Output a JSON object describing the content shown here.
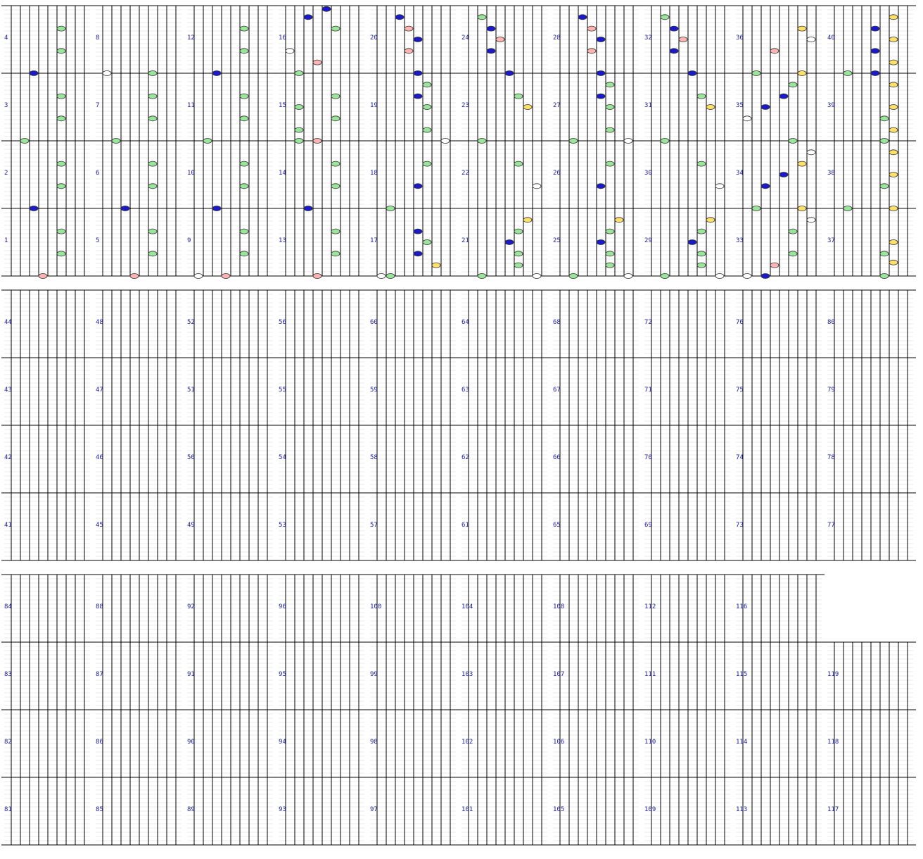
{
  "colors": {
    "white_note": "#ffffff",
    "green_note": "#99e699",
    "red_note": "#ffb3b3",
    "blue_note": "#1a1acc",
    "yellow_note": "#ffe066",
    "cyan_hold": "#a8d8ea",
    "pink_hold": "#ffb6c1",
    "green_hold": "#99e699",
    "white_hold": "#ffffff",
    "measure_number": "#2020a0"
  },
  "chart": {
    "measures": [
      "1",
      "2",
      "3",
      "4",
      "5",
      "6",
      "7",
      "8",
      "9",
      "10",
      "11",
      "12",
      "13",
      "14",
      "15",
      "16",
      "17",
      "18",
      "19",
      "20",
      "21",
      "22",
      "23",
      "24",
      "25",
      "26",
      "27",
      "28",
      "29",
      "30",
      "31",
      "32",
      "33",
      "34",
      "35",
      "36",
      "37",
      "38",
      "39",
      "40",
      "41",
      "42",
      "43",
      "44",
      "45",
      "46",
      "47",
      "48",
      "49",
      "50",
      "51",
      "52",
      "53",
      "54",
      "55",
      "56",
      "57",
      "58",
      "59",
      "60",
      "61",
      "62",
      "63",
      "64",
      "65",
      "66",
      "67",
      "68",
      "69",
      "70",
      "71",
      "72",
      "73",
      "74",
      "75",
      "76",
      "77",
      "78",
      "79",
      "80",
      "81",
      "82",
      "83",
      "84",
      "85",
      "86",
      "87",
      "88",
      "89",
      "90",
      "91",
      "92",
      "93",
      "94",
      "95",
      "96",
      "97",
      "98",
      "99",
      "100",
      "101",
      "102",
      "103",
      "104",
      "105",
      "106",
      "107",
      "108",
      "109",
      "110",
      "111",
      "112",
      "113",
      "114",
      "115",
      "116",
      "117",
      "118",
      "119"
    ]
  },
  "chart_data": {
    "type": "table",
    "lanes": [
      "white",
      "green",
      "blue",
      "red",
      "blue",
      "green",
      "yellow",
      "white"
    ],
    "columns": [
      {
        "first_measure": 1,
        "last_measure": 4,
        "notes": [
          {
            "m": 1,
            "pos": 0.0,
            "lane": 3
          },
          {
            "m": 1,
            "pos": 0.33,
            "lane": 5
          },
          {
            "m": 1,
            "pos": 0.66,
            "lane": 5
          },
          {
            "m": 2,
            "pos": 0.0,
            "lane": 2
          },
          {
            "m": 2,
            "pos": 0.33,
            "lane": 5
          },
          {
            "m": 2,
            "pos": 0.66,
            "lane": 5
          },
          {
            "m": 3,
            "pos": 0.0,
            "lane": 1
          },
          {
            "m": 3,
            "pos": 0.33,
            "lane": 5
          },
          {
            "m": 3,
            "pos": 0.66,
            "lane": 5
          },
          {
            "m": 4,
            "pos": 0.0,
            "lane": 2
          },
          {
            "m": 4,
            "pos": 0.33,
            "lane": 5
          },
          {
            "m": 4,
            "pos": 0.66,
            "lane": 5
          }
        ]
      },
      {
        "first_measure": 5,
        "last_measure": 8,
        "notes": [
          {
            "m": 5,
            "pos": 0.0,
            "lane": 3
          },
          {
            "m": 5,
            "pos": 0.33,
            "lane": 5
          },
          {
            "m": 5,
            "pos": 0.66,
            "lane": 5
          },
          {
            "m": 6,
            "pos": 0.0,
            "lane": 2
          },
          {
            "m": 6,
            "pos": 0.33,
            "lane": 5
          },
          {
            "m": 6,
            "pos": 0.66,
            "lane": 5
          },
          {
            "m": 7,
            "pos": 0.0,
            "lane": 1
          },
          {
            "m": 7,
            "pos": 0.33,
            "lane": 5
          },
          {
            "m": 7,
            "pos": 0.66,
            "lane": 5
          },
          {
            "m": 8,
            "pos": 0.0,
            "lane": 0
          },
          {
            "m": 8,
            "pos": 0.0,
            "lane": 5
          }
        ]
      },
      {
        "first_measure": 9,
        "last_measure": 12,
        "notes": [
          {
            "m": 9,
            "pos": 0.0,
            "lane": 0
          },
          {
            "m": 9,
            "pos": 0.0,
            "lane": 3
          },
          {
            "m": 9,
            "pos": 0.33,
            "lane": 5
          },
          {
            "m": 9,
            "pos": 0.66,
            "lane": 5
          },
          {
            "m": 10,
            "pos": 0.0,
            "lane": 2
          },
          {
            "m": 10,
            "pos": 0.33,
            "lane": 5
          },
          {
            "m": 10,
            "pos": 0.66,
            "lane": 5
          },
          {
            "m": 11,
            "pos": 0.0,
            "lane": 1
          },
          {
            "m": 11,
            "pos": 0.33,
            "lane": 5
          },
          {
            "m": 11,
            "pos": 0.66,
            "lane": 5
          },
          {
            "m": 12,
            "pos": 0.0,
            "lane": 2
          },
          {
            "m": 12,
            "pos": 0.33,
            "lane": 5
          },
          {
            "m": 12,
            "pos": 0.66,
            "lane": 5
          }
        ]
      },
      {
        "first_measure": 13,
        "last_measure": 16,
        "notes": [
          {
            "m": 13,
            "pos": 0.0,
            "lane": 3
          },
          {
            "m": 13,
            "pos": 0.33,
            "lane": 5
          },
          {
            "m": 13,
            "pos": 0.66,
            "lane": 5
          },
          {
            "m": 14,
            "pos": 0.0,
            "lane": 2
          },
          {
            "m": 14,
            "pos": 0.33,
            "lane": 5
          },
          {
            "m": 14,
            "pos": 0.66,
            "lane": 5
          },
          {
            "m": 15,
            "pos": 0.0,
            "lane": 1
          },
          {
            "m": 15,
            "pos": 0.0,
            "lane": 3
          },
          {
            "m": 15,
            "pos": 0.16,
            "lane": 1
          },
          {
            "m": 15,
            "pos": 0.33,
            "lane": 5
          },
          {
            "m": 15,
            "pos": 0.5,
            "lane": 1
          },
          {
            "m": 15,
            "pos": 0.66,
            "lane": 5
          },
          {
            "m": 16,
            "pos": 0.0,
            "lane": 1
          },
          {
            "m": 16,
            "pos": 0.16,
            "lane": 3
          },
          {
            "m": 16,
            "pos": 0.33,
            "lane": 0
          },
          {
            "m": 16,
            "pos": 0.66,
            "lane": 5
          },
          {
            "m": 16,
            "pos": 0.83,
            "lane": 2
          },
          {
            "m": 16,
            "pos": 0.95,
            "lane": 4
          }
        ]
      },
      {
        "first_measure": 17,
        "last_measure": 20,
        "notes": [
          {
            "m": 17,
            "pos": 0.0,
            "lane": 0
          },
          {
            "m": 17,
            "pos": 0.0,
            "lane": 1
          },
          {
            "m": 17,
            "pos": 0.16,
            "lane": 6
          },
          {
            "m": 17,
            "pos": 0.33,
            "lane": 4
          },
          {
            "m": 17,
            "pos": 0.5,
            "lane": 5
          },
          {
            "m": 17,
            "pos": 0.66,
            "lane": 4
          },
          {
            "m": 18,
            "pos": 0.0,
            "lane": 1
          },
          {
            "m": 18,
            "pos": 0.33,
            "lane": 4
          },
          {
            "m": 18,
            "pos": 0.66,
            "lane": 5
          },
          {
            "m": 19,
            "pos": 0.0,
            "lane": 7
          },
          {
            "m": 19,
            "pos": 0.16,
            "lane": 5
          },
          {
            "m": 19,
            "pos": 0.5,
            "lane": 5
          },
          {
            "m": 19,
            "pos": 0.66,
            "lane": 4
          },
          {
            "m": 19,
            "pos": 0.83,
            "lane": 5
          },
          {
            "m": 20,
            "pos": 0.0,
            "lane": 4
          },
          {
            "m": 20,
            "pos": 0.33,
            "lane": 3
          },
          {
            "m": 20,
            "pos": 0.5,
            "lane": 4
          },
          {
            "m": 20,
            "pos": 0.66,
            "lane": 3
          },
          {
            "m": 20,
            "pos": 0.83,
            "lane": 2
          }
        ]
      },
      {
        "first_measure": 21,
        "last_measure": 24,
        "notes": [
          {
            "m": 21,
            "pos": 0.0,
            "lane": 1
          },
          {
            "m": 21,
            "pos": 0.0,
            "lane": 7
          },
          {
            "m": 21,
            "pos": 0.16,
            "lane": 5
          },
          {
            "m": 21,
            "pos": 0.33,
            "lane": 5
          },
          {
            "m": 21,
            "pos": 0.5,
            "lane": 4
          },
          {
            "m": 21,
            "pos": 0.66,
            "lane": 5
          },
          {
            "m": 21,
            "pos": 0.83,
            "lane": 6
          },
          {
            "m": 22,
            "pos": 0.33,
            "lane": 7
          },
          {
            "m": 22,
            "pos": 0.66,
            "lane": 5
          },
          {
            "m": 23,
            "pos": 0.0,
            "lane": 1
          },
          {
            "m": 23,
            "pos": 0.5,
            "lane": 6
          },
          {
            "m": 23,
            "pos": 0.66,
            "lane": 5
          },
          {
            "m": 24,
            "pos": 0.0,
            "lane": 4
          },
          {
            "m": 24,
            "pos": 0.33,
            "lane": 2
          },
          {
            "m": 24,
            "pos": 0.5,
            "lane": 3
          },
          {
            "m": 24,
            "pos": 0.66,
            "lane": 2
          },
          {
            "m": 24,
            "pos": 0.83,
            "lane": 1
          }
        ]
      },
      {
        "first_measure": 25,
        "last_measure": 28,
        "notes": [
          {
            "m": 25,
            "pos": 0.0,
            "lane": 1
          },
          {
            "m": 25,
            "pos": 0.0,
            "lane": 7
          },
          {
            "m": 25,
            "pos": 0.16,
            "lane": 5
          },
          {
            "m": 25,
            "pos": 0.33,
            "lane": 5
          },
          {
            "m": 25,
            "pos": 0.5,
            "lane": 4
          },
          {
            "m": 25,
            "pos": 0.66,
            "lane": 5
          },
          {
            "m": 25,
            "pos": 0.83,
            "lane": 6
          },
          {
            "m": 26,
            "pos": 0.33,
            "lane": 4
          },
          {
            "m": 26,
            "pos": 0.66,
            "lane": 5
          },
          {
            "m": 27,
            "pos": 0.0,
            "lane": 1
          },
          {
            "m": 27,
            "pos": 0.0,
            "lane": 7
          },
          {
            "m": 27,
            "pos": 0.16,
            "lane": 5
          },
          {
            "m": 27,
            "pos": 0.5,
            "lane": 5
          },
          {
            "m": 27,
            "pos": 0.66,
            "lane": 4
          },
          {
            "m": 27,
            "pos": 0.83,
            "lane": 5
          },
          {
            "m": 28,
            "pos": 0.0,
            "lane": 4
          },
          {
            "m": 28,
            "pos": 0.33,
            "lane": 3
          },
          {
            "m": 28,
            "pos": 0.5,
            "lane": 4
          },
          {
            "m": 28,
            "pos": 0.66,
            "lane": 3
          },
          {
            "m": 28,
            "pos": 0.83,
            "lane": 2
          }
        ]
      },
      {
        "first_measure": 29,
        "last_measure": 32,
        "notes": [
          {
            "m": 29,
            "pos": 0.0,
            "lane": 1
          },
          {
            "m": 29,
            "pos": 0.0,
            "lane": 7
          },
          {
            "m": 29,
            "pos": 0.16,
            "lane": 5
          },
          {
            "m": 29,
            "pos": 0.33,
            "lane": 5
          },
          {
            "m": 29,
            "pos": 0.5,
            "lane": 4
          },
          {
            "m": 29,
            "pos": 0.66,
            "lane": 5
          },
          {
            "m": 29,
            "pos": 0.83,
            "lane": 6
          },
          {
            "m": 30,
            "pos": 0.33,
            "lane": 7
          },
          {
            "m": 30,
            "pos": 0.66,
            "lane": 5
          },
          {
            "m": 31,
            "pos": 0.0,
            "lane": 1
          },
          {
            "m": 31,
            "pos": 0.5,
            "lane": 6
          },
          {
            "m": 31,
            "pos": 0.66,
            "lane": 5
          },
          {
            "m": 32,
            "pos": 0.0,
            "lane": 4
          },
          {
            "m": 32,
            "pos": 0.33,
            "lane": 2
          },
          {
            "m": 32,
            "pos": 0.5,
            "lane": 3
          },
          {
            "m": 32,
            "pos": 0.66,
            "lane": 2
          },
          {
            "m": 32,
            "pos": 0.83,
            "lane": 1
          }
        ]
      },
      {
        "first_measure": 33,
        "last_measure": 36,
        "notes": [
          {
            "m": 33,
            "pos": 0.0,
            "lane": 0
          },
          {
            "m": 33,
            "pos": 0.0,
            "lane": 2
          },
          {
            "m": 33,
            "pos": 0.16,
            "lane": 3
          },
          {
            "m": 33,
            "pos": 0.33,
            "lane": 5
          },
          {
            "m": 33,
            "pos": 0.66,
            "lane": 5
          },
          {
            "m": 33,
            "pos": 0.83,
            "lane": 7
          },
          {
            "m": 34,
            "pos": 0.0,
            "lane": 1
          },
          {
            "m": 34,
            "pos": 0.0,
            "lane": 6
          },
          {
            "m": 34,
            "pos": 0.33,
            "lane": 2
          },
          {
            "m": 34,
            "pos": 0.5,
            "lane": 4
          },
          {
            "m": 34,
            "pos": 0.66,
            "lane": 6
          },
          {
            "m": 34,
            "pos": 0.83,
            "lane": 7
          },
          {
            "m": 35,
            "pos": 0.0,
            "lane": 5
          },
          {
            "m": 35,
            "pos": 0.33,
            "lane": 0
          },
          {
            "m": 35,
            "pos": 0.5,
            "lane": 2
          },
          {
            "m": 35,
            "pos": 0.66,
            "lane": 4
          },
          {
            "m": 35,
            "pos": 0.83,
            "lane": 5
          },
          {
            "m": 36,
            "pos": 0.0,
            "lane": 1
          },
          {
            "m": 36,
            "pos": 0.0,
            "lane": 6
          },
          {
            "m": 36,
            "pos": 0.33,
            "lane": 3
          },
          {
            "m": 36,
            "pos": 0.5,
            "lane": 7
          },
          {
            "m": 36,
            "pos": 0.66,
            "lane": 6
          }
        ]
      },
      {
        "first_measure": 37,
        "last_measure": 40,
        "notes": [
          {
            "m": 37,
            "pos": 0.0,
            "lane": 5
          },
          {
            "m": 37,
            "pos": 0.2,
            "lane": 6
          },
          {
            "m": 37,
            "pos": 0.33,
            "lane": 5
          },
          {
            "m": 37,
            "pos": 0.5,
            "lane": 6
          },
          {
            "m": 38,
            "pos": 0.0,
            "lane": 1
          },
          {
            "m": 38,
            "pos": 0.0,
            "lane": 6
          },
          {
            "m": 38,
            "pos": 0.33,
            "lane": 5
          },
          {
            "m": 38,
            "pos": 0.5,
            "lane": 6
          },
          {
            "m": 38,
            "pos": 0.83,
            "lane": 6
          },
          {
            "m": 39,
            "pos": 0.0,
            "lane": 5
          },
          {
            "m": 39,
            "pos": 0.16,
            "lane": 6
          },
          {
            "m": 39,
            "pos": 0.33,
            "lane": 5
          },
          {
            "m": 39,
            "pos": 0.5,
            "lane": 6
          },
          {
            "m": 39,
            "pos": 0.83,
            "lane": 6
          },
          {
            "m": 40,
            "pos": 0.0,
            "lane": 1
          },
          {
            "m": 40,
            "pos": 0.0,
            "lane": 4
          },
          {
            "m": 40,
            "pos": 0.16,
            "lane": 6
          },
          {
            "m": 40,
            "pos": 0.33,
            "lane": 4
          },
          {
            "m": 40,
            "pos": 0.5,
            "lane": 6
          },
          {
            "m": 40,
            "pos": 0.66,
            "lane": 4
          },
          {
            "m": 40,
            "pos": 0.83,
            "lane": 6
          }
        ]
      }
    ]
  }
}
